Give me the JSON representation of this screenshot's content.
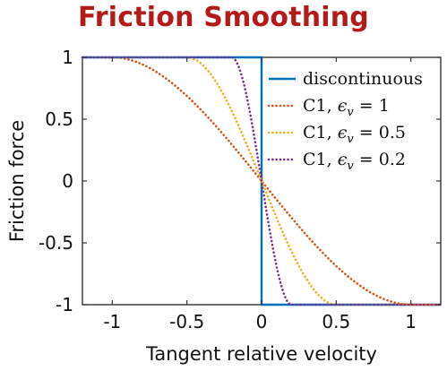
{
  "title": "Friction Smoothing",
  "chart_data": {
    "type": "line",
    "xlabel": "Tangent relative velocity",
    "ylabel": "Friction force",
    "xlim": [
      -1.2,
      1.2
    ],
    "ylim": [
      -1,
      1
    ],
    "xticks": [
      -1,
      -0.5,
      0,
      0.5,
      1
    ],
    "xtick_labels": [
      "-1",
      "-0.5",
      "0",
      "0.5",
      "1"
    ],
    "yticks": [
      1,
      0.5,
      0,
      -0.5,
      -1
    ],
    "ytick_labels": [
      "1",
      "0.5",
      "0",
      "-0.5",
      "-1"
    ],
    "legend_position": "top-right",
    "series": [
      {
        "label": "discontinuous",
        "color": "#0072bd",
        "style": "solid",
        "epsilon": 0,
        "x": [
          -1.2,
          0,
          0,
          1.2
        ],
        "y": [
          1,
          1,
          -1,
          -1
        ]
      },
      {
        "label": "C1, ε_v = 1",
        "color": "#d95319",
        "style": "dotted",
        "epsilon": 1,
        "x": [
          -1.2,
          -1,
          -0.75,
          -0.5,
          -0.25,
          0,
          0.25,
          0.5,
          0.75,
          1,
          1.2
        ],
        "y": [
          1,
          1,
          0.97,
          0.75,
          0.41,
          0,
          -0.41,
          -0.75,
          -0.97,
          -1,
          -1
        ]
      },
      {
        "label": "C1, ε_v = 0.5",
        "color": "#edb120",
        "style": "dotted",
        "epsilon": 0.5,
        "x": [
          -1.2,
          -0.5,
          -0.375,
          -0.25,
          -0.125,
          0,
          0.125,
          0.25,
          0.375,
          0.5,
          1.2
        ],
        "y": [
          1,
          1,
          0.97,
          0.75,
          0.41,
          0,
          -0.41,
          -0.75,
          -0.97,
          -1,
          -1
        ]
      },
      {
        "label": "C1, ε_v = 0.2",
        "color": "#7e2f8e",
        "style": "dotted",
        "epsilon": 0.2,
        "x": [
          -1.2,
          -0.2,
          -0.15,
          -0.1,
          -0.05,
          0,
          0.05,
          0.1,
          0.15,
          0.2,
          1.2
        ],
        "y": [
          1,
          1,
          0.97,
          0.75,
          0.41,
          0,
          -0.41,
          -0.75,
          -0.97,
          -1,
          -1
        ]
      }
    ],
    "legend_entries": [
      {
        "text": "discontinuous"
      },
      {
        "text": "C1,",
        "eps": "ϵ",
        "sub": "v",
        "value": "= 1"
      },
      {
        "text": "C1,",
        "eps": "ϵ",
        "sub": "v",
        "value": "= 0.5"
      },
      {
        "text": "C1,",
        "eps": "ϵ",
        "sub": "v",
        "value": "= 0.2"
      }
    ]
  }
}
